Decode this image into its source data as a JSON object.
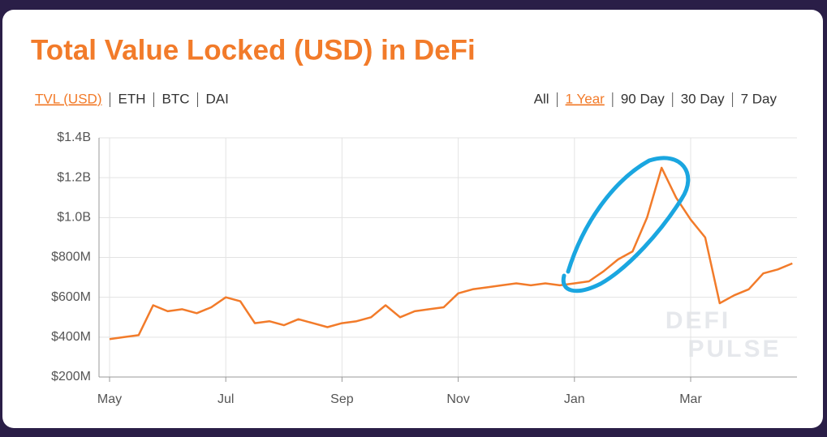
{
  "chart_data": {
    "type": "line",
    "title": "Total Value Locked (USD) in DeFi",
    "left_tabs": [
      "TVL (USD)",
      "ETH",
      "BTC",
      "DAI"
    ],
    "range_tabs": [
      "All",
      "1 Year",
      "90 Day",
      "30 Day",
      "7 Day"
    ],
    "watermark": [
      "DEFI",
      "PULSE"
    ],
    "categories": [
      "May",
      null,
      null,
      null,
      null,
      null,
      null,
      null,
      "Jul",
      null,
      null,
      null,
      null,
      null,
      null,
      null,
      "Sep",
      null,
      null,
      null,
      null,
      null,
      null,
      null,
      "Nov",
      null,
      null,
      null,
      null,
      null,
      null,
      null,
      "Jan",
      null,
      null,
      null,
      null,
      null,
      null,
      null,
      "Mar",
      null,
      null,
      null,
      null,
      null,
      null,
      null
    ],
    "values": [
      390,
      400,
      410,
      560,
      530,
      540,
      520,
      550,
      600,
      580,
      470,
      480,
      460,
      490,
      470,
      450,
      470,
      480,
      500,
      560,
      500,
      530,
      540,
      550,
      620,
      640,
      650,
      660,
      670,
      660,
      670,
      660,
      670,
      680,
      730,
      790,
      830,
      1000,
      1250,
      1100,
      990,
      900,
      570,
      610,
      640,
      720,
      740,
      770
    ],
    "color": "#f27b2a",
    "ylim": [
      200,
      1400
    ],
    "yticks": [
      {
        "value": 200,
        "label": "$200M"
      },
      {
        "value": 400,
        "label": "$400M"
      },
      {
        "value": 600,
        "label": "$600M"
      },
      {
        "value": 800,
        "label": "$800M"
      },
      {
        "value": 1000,
        "label": "$1.0B"
      },
      {
        "value": 1200,
        "label": "$1.2B"
      },
      {
        "value": 1400,
        "label": "$1.4B"
      }
    ],
    "grid": true
  }
}
